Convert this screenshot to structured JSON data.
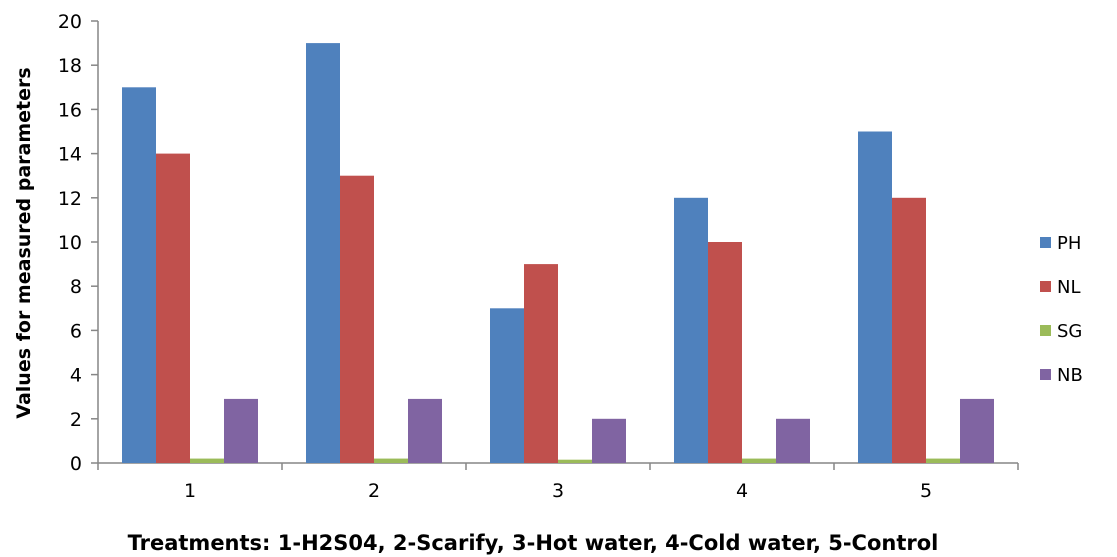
{
  "chart_data": {
    "type": "bar",
    "categories": [
      "1",
      "2",
      "3",
      "4",
      "5"
    ],
    "series": [
      {
        "name": "PH",
        "values": [
          17,
          19,
          7,
          12,
          15
        ]
      },
      {
        "name": "NL",
        "values": [
          14,
          13,
          9,
          10,
          12
        ]
      },
      {
        "name": "SG",
        "values": [
          0.2,
          0.2,
          0.15,
          0.2,
          0.2
        ]
      },
      {
        "name": "NB",
        "values": [
          2.9,
          2.9,
          2,
          2,
          2.9
        ]
      }
    ],
    "colors": [
      "#4f81bd",
      "#c0504d",
      "#9bbb59",
      "#8064a2"
    ],
    "title": "",
    "xlabel": "Treatments: 1-H2S04, 2-Scarify, 3-Hot water, 4-Cold water, 5-Control",
    "ylabel": "Values for measured parameters",
    "ylim": [
      0,
      20
    ],
    "yticks": [
      0,
      2,
      4,
      6,
      8,
      10,
      12,
      14,
      16,
      18,
      20
    ],
    "grid": false,
    "legend_position": "right"
  }
}
